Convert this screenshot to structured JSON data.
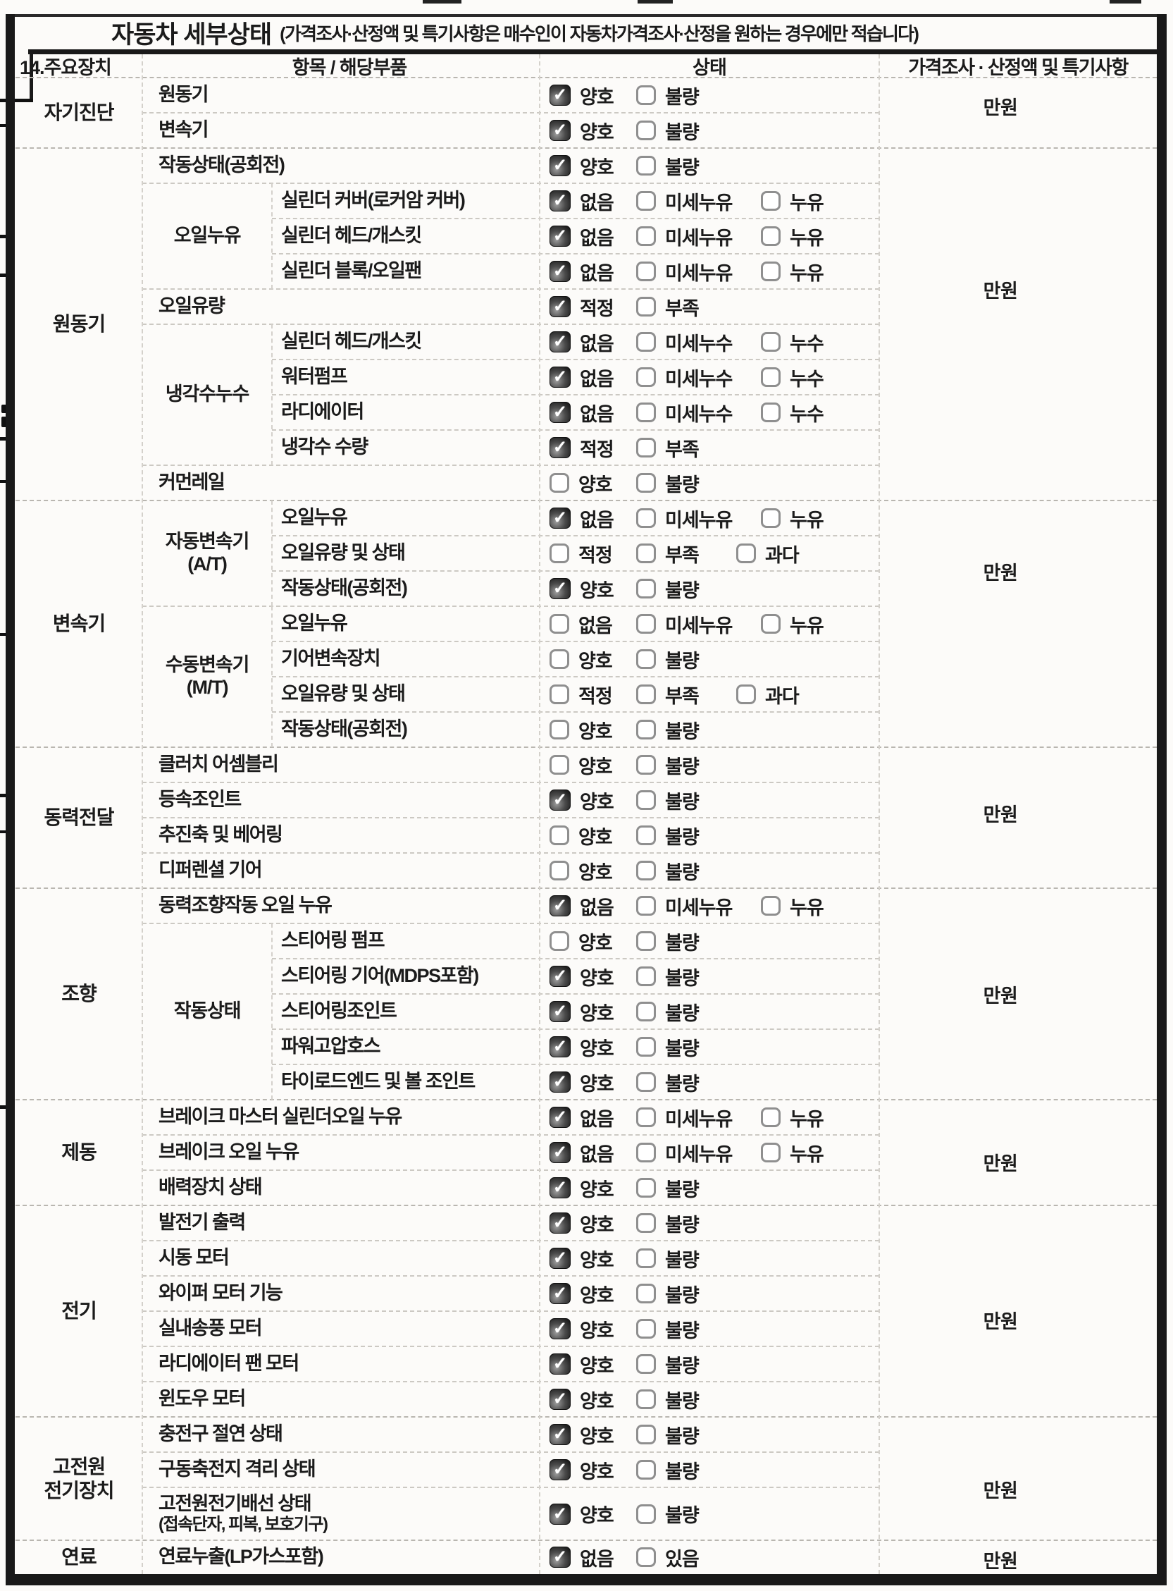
{
  "document": {
    "title": "자동차 세부상태",
    "title_note": "(가격조사·산정액 및 특기사항은 매수인이 자동차가격조사·산정을 원하는 경우에만 적습니다)"
  },
  "header": {
    "col_device": "14.주요장치",
    "col_item": "항목 / 해당부품",
    "col_status": "상태",
    "col_price": "가격조사 · 산정액 및 특기사항"
  },
  "icons": {
    "check": "✓"
  },
  "colors": {
    "paper": "#fcfbf9",
    "ink": "#1b1b1b",
    "checkbox_fill": "#3a3a3a"
  },
  "groups": [
    {
      "label": "자기진단",
      "rows": [
        1,
        2
      ],
      "price": "만원"
    },
    {
      "label": "원동기",
      "rows": [
        3,
        12
      ],
      "price": "만원"
    },
    {
      "label": "변속기",
      "rows": [
        13,
        19
      ],
      "price": "만원"
    },
    {
      "label": "동력전달",
      "rows": [
        20,
        23
      ],
      "price": "만원"
    },
    {
      "label": "조향",
      "rows": [
        24,
        29
      ],
      "price": "만원"
    },
    {
      "label": "제동",
      "rows": [
        30,
        32
      ],
      "price": "만원"
    },
    {
      "label": "전기",
      "rows": [
        33,
        38
      ],
      "price": "만원"
    },
    {
      "label": "고전원",
      "label2": "전기장치",
      "rows": [
        39,
        41
      ],
      "price": "만원"
    },
    {
      "label": "연료",
      "rows": [
        42,
        42
      ],
      "price": "만원"
    }
  ],
  "subgroups": [
    {
      "label": "오일누유",
      "rows": [
        4,
        6
      ]
    },
    {
      "label": "냉각수누수",
      "rows": [
        8,
        11
      ]
    },
    {
      "label": "자동변속기",
      "label2": "(A/T)",
      "rows": [
        13,
        15
      ]
    },
    {
      "label": "수동변속기",
      "label2": "(M/T)",
      "rows": [
        16,
        19
      ]
    },
    {
      "label": "작동상태",
      "rows": [
        25,
        29
      ]
    }
  ],
  "rows": [
    {
      "item": "원동기",
      "options": [
        {
          "label": "양호",
          "checked": true
        },
        {
          "label": "불량",
          "checked": false
        }
      ]
    },
    {
      "item": "변속기",
      "options": [
        {
          "label": "양호",
          "checked": true
        },
        {
          "label": "불량",
          "checked": false
        }
      ]
    },
    {
      "item": "작동상태(공회전)",
      "options": [
        {
          "label": "양호",
          "checked": true
        },
        {
          "label": "불량",
          "checked": false
        }
      ]
    },
    {
      "item": "실린더 커버(로커암 커버)",
      "options": [
        {
          "label": "없음",
          "checked": true
        },
        {
          "label": "미세누유",
          "checked": false
        },
        {
          "label": "누유",
          "checked": false
        }
      ]
    },
    {
      "item": "실린더 헤드/개스킷",
      "options": [
        {
          "label": "없음",
          "checked": true
        },
        {
          "label": "미세누유",
          "checked": false
        },
        {
          "label": "누유",
          "checked": false
        }
      ]
    },
    {
      "item": "실린더 블록/오일팬",
      "options": [
        {
          "label": "없음",
          "checked": true
        },
        {
          "label": "미세누유",
          "checked": false
        },
        {
          "label": "누유",
          "checked": false
        }
      ]
    },
    {
      "item": "오일유량",
      "options": [
        {
          "label": "적정",
          "checked": true
        },
        {
          "label": "부족",
          "checked": false
        }
      ]
    },
    {
      "item": "실린더 헤드/개스킷",
      "options": [
        {
          "label": "없음",
          "checked": true
        },
        {
          "label": "미세누수",
          "checked": false
        },
        {
          "label": "누수",
          "checked": false
        }
      ]
    },
    {
      "item": "워터펌프",
      "options": [
        {
          "label": "없음",
          "checked": true
        },
        {
          "label": "미세누수",
          "checked": false
        },
        {
          "label": "누수",
          "checked": false
        }
      ]
    },
    {
      "item": "라디에이터",
      "options": [
        {
          "label": "없음",
          "checked": true
        },
        {
          "label": "미세누수",
          "checked": false
        },
        {
          "label": "누수",
          "checked": false
        }
      ]
    },
    {
      "item": "냉각수 수량",
      "options": [
        {
          "label": "적정",
          "checked": true
        },
        {
          "label": "부족",
          "checked": false
        }
      ]
    },
    {
      "item": "커먼레일",
      "options": [
        {
          "label": "양호",
          "checked": false
        },
        {
          "label": "불량",
          "checked": false
        }
      ]
    },
    {
      "item": "오일누유",
      "options": [
        {
          "label": "없음",
          "checked": true
        },
        {
          "label": "미세누유",
          "checked": false
        },
        {
          "label": "누유",
          "checked": false
        }
      ]
    },
    {
      "item": "오일유량 및 상태",
      "options": [
        {
          "label": "적정",
          "checked": false
        },
        {
          "label": "부족",
          "checked": false
        },
        {
          "label": "과다",
          "checked": false
        }
      ]
    },
    {
      "item": "작동상태(공회전)",
      "options": [
        {
          "label": "양호",
          "checked": true
        },
        {
          "label": "불량",
          "checked": false
        }
      ]
    },
    {
      "item": "오일누유",
      "options": [
        {
          "label": "없음",
          "checked": false
        },
        {
          "label": "미세누유",
          "checked": false
        },
        {
          "label": "누유",
          "checked": false
        }
      ]
    },
    {
      "item": "기어변속장치",
      "options": [
        {
          "label": "양호",
          "checked": false
        },
        {
          "label": "불량",
          "checked": false
        }
      ]
    },
    {
      "item": "오일유량 및 상태",
      "options": [
        {
          "label": "적정",
          "checked": false
        },
        {
          "label": "부족",
          "checked": false
        },
        {
          "label": "과다",
          "checked": false
        }
      ]
    },
    {
      "item": "작동상태(공회전)",
      "options": [
        {
          "label": "양호",
          "checked": false
        },
        {
          "label": "불량",
          "checked": false
        }
      ]
    },
    {
      "item": "클러치 어셈블리",
      "options": [
        {
          "label": "양호",
          "checked": false
        },
        {
          "label": "불량",
          "checked": false
        }
      ]
    },
    {
      "item": "등속조인트",
      "options": [
        {
          "label": "양호",
          "checked": true
        },
        {
          "label": "불량",
          "checked": false
        }
      ]
    },
    {
      "item": "추진축 및 베어링",
      "options": [
        {
          "label": "양호",
          "checked": false
        },
        {
          "label": "불량",
          "checked": false
        }
      ]
    },
    {
      "item": "디퍼렌셜 기어",
      "options": [
        {
          "label": "양호",
          "checked": false
        },
        {
          "label": "불량",
          "checked": false
        }
      ]
    },
    {
      "item": "동력조향작동 오일 누유",
      "options": [
        {
          "label": "없음",
          "checked": true
        },
        {
          "label": "미세누유",
          "checked": false
        },
        {
          "label": "누유",
          "checked": false
        }
      ]
    },
    {
      "item": "스티어링 펌프",
      "options": [
        {
          "label": "양호",
          "checked": false
        },
        {
          "label": "불량",
          "checked": false
        }
      ]
    },
    {
      "item": "스티어링 기어(MDPS포함)",
      "options": [
        {
          "label": "양호",
          "checked": true
        },
        {
          "label": "불량",
          "checked": false
        }
      ]
    },
    {
      "item": "스티어링조인트",
      "options": [
        {
          "label": "양호",
          "checked": true
        },
        {
          "label": "불량",
          "checked": false
        }
      ]
    },
    {
      "item": "파워고압호스",
      "options": [
        {
          "label": "양호",
          "checked": true
        },
        {
          "label": "불량",
          "checked": false
        }
      ]
    },
    {
      "item": "타이로드엔드 및 볼 조인트",
      "options": [
        {
          "label": "양호",
          "checked": true
        },
        {
          "label": "불량",
          "checked": false
        }
      ]
    },
    {
      "item": "브레이크 마스터 실린더오일 누유",
      "options": [
        {
          "label": "없음",
          "checked": true
        },
        {
          "label": "미세누유",
          "checked": false
        },
        {
          "label": "누유",
          "checked": false
        }
      ]
    },
    {
      "item": "브레이크 오일 누유",
      "options": [
        {
          "label": "없음",
          "checked": true
        },
        {
          "label": "미세누유",
          "checked": false
        },
        {
          "label": "누유",
          "checked": false
        }
      ]
    },
    {
      "item": "배력장치 상태",
      "options": [
        {
          "label": "양호",
          "checked": true
        },
        {
          "label": "불량",
          "checked": false
        }
      ]
    },
    {
      "item": "발전기 출력",
      "options": [
        {
          "label": "양호",
          "checked": true
        },
        {
          "label": "불량",
          "checked": false
        }
      ]
    },
    {
      "item": "시동 모터",
      "options": [
        {
          "label": "양호",
          "checked": true
        },
        {
          "label": "불량",
          "checked": false
        }
      ]
    },
    {
      "item": "와이퍼 모터 기능",
      "options": [
        {
          "label": "양호",
          "checked": true
        },
        {
          "label": "불량",
          "checked": false
        }
      ]
    },
    {
      "item": "실내송풍 모터",
      "options": [
        {
          "label": "양호",
          "checked": true
        },
        {
          "label": "불량",
          "checked": false
        }
      ]
    },
    {
      "item": "라디에이터 팬 모터",
      "options": [
        {
          "label": "양호",
          "checked": true
        },
        {
          "label": "불량",
          "checked": false
        }
      ]
    },
    {
      "item": "윈도우 모터",
      "options": [
        {
          "label": "양호",
          "checked": true
        },
        {
          "label": "불량",
          "checked": false
        }
      ]
    },
    {
      "item": "충전구 절연 상태",
      "options": [
        {
          "label": "양호",
          "checked": true
        },
        {
          "label": "불량",
          "checked": false
        }
      ]
    },
    {
      "item": "구동축전지 격리 상태",
      "options": [
        {
          "label": "양호",
          "checked": true
        },
        {
          "label": "불량",
          "checked": false
        }
      ]
    },
    {
      "item": "고전원전기배선 상태",
      "item2": "(접속단자, 피복, 보호기구)",
      "options": [
        {
          "label": "양호",
          "checked": true
        },
        {
          "label": "불량",
          "checked": false
        }
      ]
    },
    {
      "item": "연료누출(LP가스포함)",
      "options": [
        {
          "label": "없음",
          "checked": true
        },
        {
          "label": "있음",
          "checked": false
        }
      ]
    }
  ]
}
